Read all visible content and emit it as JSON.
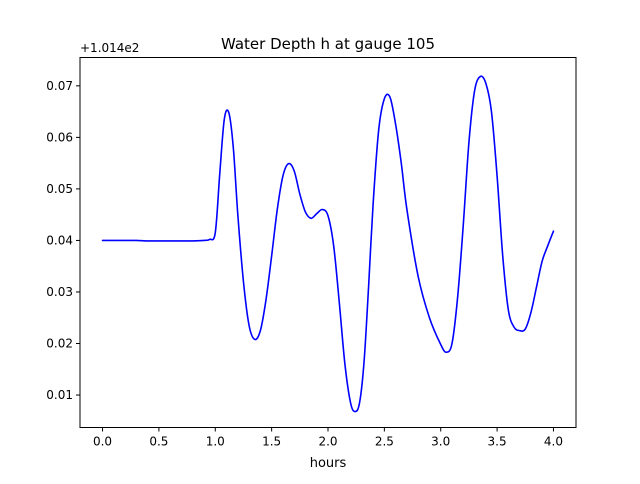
{
  "chart_data": {
    "type": "line",
    "title": "Water Depth h at gauge 105",
    "xlabel": "hours",
    "ylabel": "",
    "y_offset_label": "+1.014e2",
    "xlim": [
      -0.2,
      4.2
    ],
    "ylim": [
      0.0037,
      0.0755
    ],
    "x_ticks": [
      0.0,
      0.5,
      1.0,
      1.5,
      2.0,
      2.5,
      3.0,
      3.5,
      4.0
    ],
    "x_tick_labels": [
      "0.0",
      "0.5",
      "1.0",
      "1.5",
      "2.0",
      "2.5",
      "3.0",
      "3.5",
      "4.0"
    ],
    "y_ticks": [
      0.01,
      0.02,
      0.03,
      0.04,
      0.05,
      0.06,
      0.07
    ],
    "y_tick_labels": [
      "0.01",
      "0.02",
      "0.03",
      "0.04",
      "0.05",
      "0.06",
      "0.07"
    ],
    "grid": false,
    "color": "#0000ff",
    "series": [
      {
        "x": [
          0.0,
          0.1,
          0.2,
          0.3,
          0.4,
          0.5,
          0.6,
          0.7,
          0.8,
          0.9,
          0.95,
          1.0,
          1.04,
          1.08,
          1.12,
          1.16,
          1.2,
          1.25,
          1.3,
          1.35,
          1.4,
          1.45,
          1.5,
          1.55,
          1.6,
          1.65,
          1.7,
          1.75,
          1.8,
          1.85,
          1.9,
          1.95,
          2.0,
          2.05,
          2.1,
          2.15,
          2.2,
          2.24,
          2.28,
          2.32,
          2.36,
          2.4,
          2.45,
          2.5,
          2.55,
          2.6,
          2.65,
          2.7,
          2.8,
          2.9,
          3.0,
          3.05,
          3.1,
          3.15,
          3.2,
          3.25,
          3.3,
          3.35,
          3.4,
          3.45,
          3.5,
          3.55,
          3.6,
          3.65,
          3.7,
          3.75,
          3.8,
          3.85,
          3.9,
          3.95,
          4.0
        ],
        "y": [
          0.04,
          0.04,
          0.04,
          0.04,
          0.0399,
          0.0399,
          0.0399,
          0.0399,
          0.0399,
          0.04,
          0.0402,
          0.0415,
          0.053,
          0.0635,
          0.0648,
          0.058,
          0.045,
          0.032,
          0.0235,
          0.0208,
          0.0225,
          0.0285,
          0.037,
          0.046,
          0.0525,
          0.0549,
          0.0535,
          0.049,
          0.0455,
          0.0443,
          0.0452,
          0.046,
          0.0448,
          0.039,
          0.028,
          0.016,
          0.0085,
          0.0068,
          0.0085,
          0.0165,
          0.031,
          0.047,
          0.0615,
          0.0675,
          0.0678,
          0.0625,
          0.055,
          0.046,
          0.033,
          0.025,
          0.0198,
          0.0183,
          0.02,
          0.029,
          0.043,
          0.059,
          0.069,
          0.0718,
          0.0705,
          0.065,
          0.0525,
          0.037,
          0.0265,
          0.0232,
          0.0225,
          0.0228,
          0.026,
          0.031,
          0.036,
          0.039,
          0.0418
        ]
      }
    ]
  }
}
